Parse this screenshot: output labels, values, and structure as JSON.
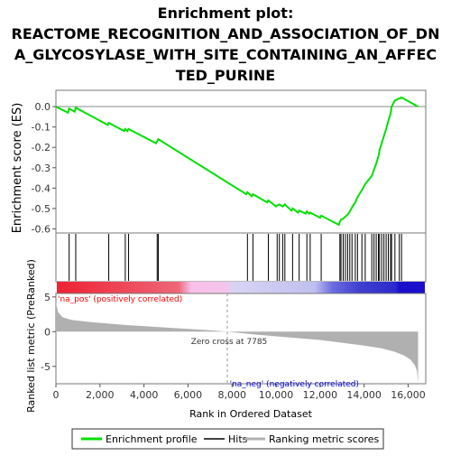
{
  "chart_data": {
    "type": "line",
    "title_lines": [
      "Enrichment plot:",
      "REACTOME_RECOGNITION_AND_ASSOCIATION_OF_DN",
      "A_GLYCOSYLASE_WITH_SITE_CONTAINING_AN_AFFEC",
      "TED_PURINE"
    ],
    "ylabel_top": "Enrichment score (ES)",
    "ylabel_bottom": "Ranked list metric (PreRanked)",
    "xlabel": "Rank in Ordered Dataset",
    "xlim": [
      0,
      16800
    ],
    "x_ticks": [
      0,
      2000,
      4000,
      6000,
      8000,
      10000,
      12000,
      14000,
      16000
    ],
    "x_tick_labels": [
      "0",
      "2,000",
      "4,000",
      "6,000",
      "8,000",
      "10,000",
      "12,000",
      "14,000",
      "16,000"
    ],
    "es_ylim": [
      -0.62,
      0.08
    ],
    "es_ticks": [
      0.0,
      -0.1,
      -0.2,
      -0.3,
      -0.4,
      -0.5,
      -0.6
    ],
    "es_tick_labels": [
      "0.0",
      "-0.1",
      "-0.2",
      "-0.3",
      "-0.4",
      "-0.5",
      "-0.6"
    ],
    "metric_ylim": [
      -7.5,
      5.5
    ],
    "metric_ticks": [
      5,
      0,
      -5
    ],
    "metric_tick_labels": [
      "5",
      "0",
      "-5"
    ],
    "zero_cross": 7785,
    "zero_cross_label": "Zero cross at 7785",
    "pos_label": "'na_pos' (positively correlated)",
    "neg_label": "'na_neg' (negatively correlated)",
    "legend": [
      "Enrichment profile",
      "Hits",
      "Ranking metric scores"
    ],
    "colors": {
      "profile": "#00e000",
      "hits": "#000000",
      "metric": "#b0b0b0",
      "pos_text": "#ff0000",
      "neg_text": "#0000cc"
    },
    "hits": [
      600,
      900,
      2400,
      3150,
      3300,
      4600,
      4650,
      8700,
      8950,
      9650,
      10050,
      10150,
      10300,
      10400,
      10750,
      11050,
      11400,
      11550,
      12050,
      12900,
      12950,
      13050,
      13150,
      13250,
      13350,
      13450,
      13600,
      13700,
      13900,
      14050,
      14350,
      14450,
      14550,
      14650,
      14700,
      14800,
      14900,
      15000,
      15100,
      15200,
      15250,
      15400,
      15600,
      15700
    ],
    "es_profile": {
      "x": [
        0,
        550,
        600,
        850,
        900,
        2350,
        2400,
        3100,
        3150,
        3250,
        3300,
        4550,
        4600,
        4650,
        8650,
        8700,
        8900,
        8950,
        9600,
        9650,
        10000,
        10050,
        10150,
        10300,
        10400,
        10700,
        10750,
        11000,
        11050,
        11350,
        11400,
        11500,
        11550,
        12000,
        12050,
        12850,
        12900,
        12950,
        13050,
        13150,
        13250,
        13350,
        13450,
        13600,
        13700,
        13900,
        14050,
        14350,
        14450,
        14550,
        14650,
        14700,
        14800,
        14900,
        15000,
        15100,
        15200,
        15250,
        15400,
        15600,
        15700,
        16450
      ],
      "y": [
        0.0,
        -0.03,
        -0.01,
        -0.025,
        -0.005,
        -0.09,
        -0.08,
        -0.12,
        -0.11,
        -0.12,
        -0.11,
        -0.18,
        -0.17,
        -0.16,
        -0.43,
        -0.42,
        -0.44,
        -0.43,
        -0.47,
        -0.46,
        -0.49,
        -0.485,
        -0.48,
        -0.49,
        -0.48,
        -0.51,
        -0.5,
        -0.52,
        -0.51,
        -0.525,
        -0.515,
        -0.525,
        -0.52,
        -0.545,
        -0.535,
        -0.58,
        -0.565,
        -0.555,
        -0.55,
        -0.54,
        -0.53,
        -0.515,
        -0.495,
        -0.47,
        -0.445,
        -0.41,
        -0.38,
        -0.34,
        -0.31,
        -0.28,
        -0.245,
        -0.215,
        -0.18,
        -0.145,
        -0.11,
        -0.07,
        -0.035,
        0.0,
        0.03,
        0.04,
        0.045,
        0.0
      ]
    },
    "metric": {
      "x": [
        0,
        100,
        300,
        700,
        1500,
        3000,
        5000,
        7000,
        7785,
        9000,
        10500,
        12000,
        13000,
        14000,
        14800,
        15400,
        15800,
        16100,
        16300,
        16400,
        16450
      ],
      "y": [
        4.2,
        2.8,
        2.1,
        1.7,
        1.4,
        1.0,
        0.6,
        0.2,
        0.0,
        -0.4,
        -0.8,
        -1.2,
        -1.6,
        -2.0,
        -2.4,
        -2.9,
        -3.4,
        -4.0,
        -4.8,
        -5.6,
        -7.4
      ]
    }
  }
}
